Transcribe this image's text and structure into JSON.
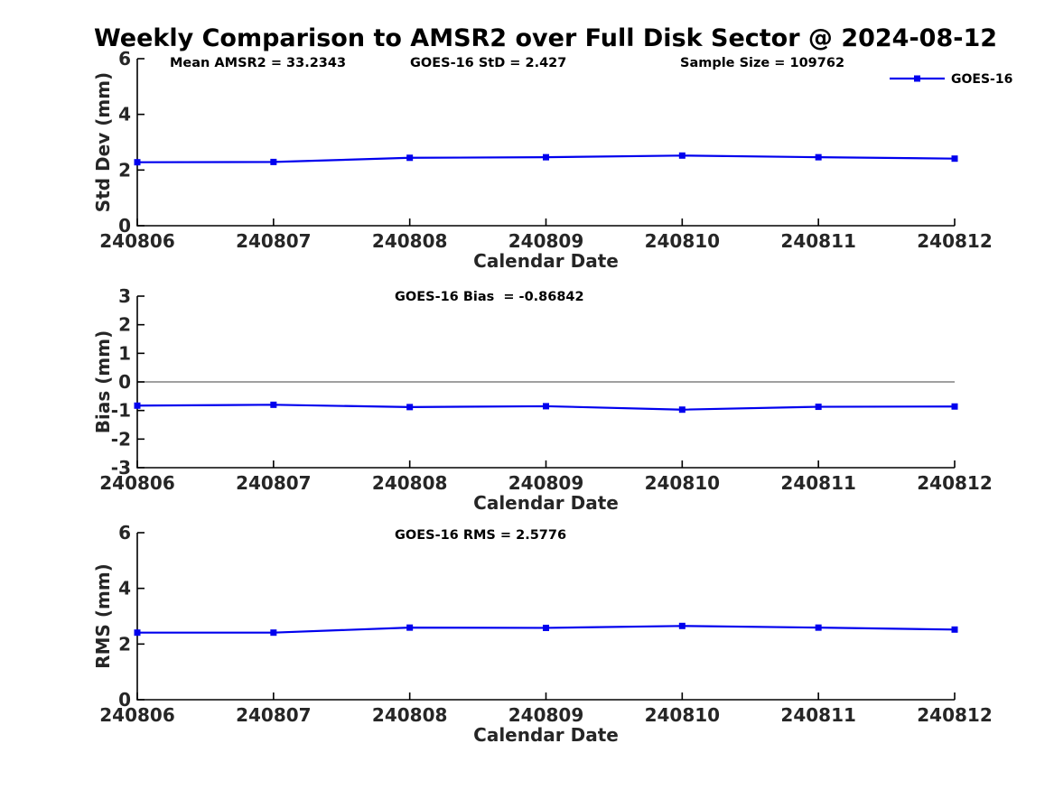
{
  "figure": {
    "title": "Weekly Comparison to AMSR2 over Full Disk Sector @ 2024-08-12",
    "background": "#ffffff"
  },
  "style": {
    "series_color": "#0000ee",
    "axis_color": "#000000",
    "tick_text_color": "#262626",
    "zero_line_color": "#808080",
    "marker_shape": "square"
  },
  "legend": {
    "visible": true,
    "position": "top-right",
    "entries": [
      {
        "label": "GOES-16",
        "color": "#0000ee",
        "marker": "square"
      }
    ]
  },
  "chart_data": [
    {
      "type": "line",
      "name": "std-dev",
      "xlabel": "Calendar Date",
      "ylabel": "Std Dev (mm)",
      "categories": [
        "240806",
        "240807",
        "240808",
        "240809",
        "240810",
        "240811",
        "240812"
      ],
      "series": [
        {
          "name": "GOES-16",
          "values": [
            2.28,
            2.29,
            2.44,
            2.46,
            2.52,
            2.46,
            2.41
          ]
        }
      ],
      "ylim": [
        0,
        6
      ],
      "yticks": [
        0,
        2,
        4,
        6
      ],
      "grid": false,
      "zero_line": false,
      "show_legend": true,
      "annotations": [
        "Mean AMSR2 = 33.2343",
        "GOES-16 StD = 2.427",
        "Sample Size = 109762"
      ]
    },
    {
      "type": "line",
      "name": "bias",
      "xlabel": "Calendar Date",
      "ylabel": "Bias (mm)",
      "categories": [
        "240806",
        "240807",
        "240808",
        "240809",
        "240810",
        "240811",
        "240812"
      ],
      "series": [
        {
          "name": "GOES-16",
          "values": [
            -0.83,
            -0.8,
            -0.88,
            -0.85,
            -0.97,
            -0.87,
            -0.86
          ]
        }
      ],
      "ylim": [
        -3,
        3
      ],
      "yticks": [
        -3,
        -2,
        -1,
        0,
        1,
        2,
        3
      ],
      "grid": false,
      "zero_line": true,
      "show_legend": false,
      "annotations": [
        "GOES-16 Bias  = -0.86842"
      ]
    },
    {
      "type": "line",
      "name": "rms",
      "xlabel": "Calendar Date",
      "ylabel": "RMS (mm)",
      "categories": [
        "240806",
        "240807",
        "240808",
        "240809",
        "240810",
        "240811",
        "240812"
      ],
      "series": [
        {
          "name": "GOES-16",
          "values": [
            2.41,
            2.41,
            2.59,
            2.58,
            2.65,
            2.59,
            2.52
          ]
        }
      ],
      "ylim": [
        0,
        6
      ],
      "yticks": [
        0,
        2,
        4,
        6
      ],
      "grid": false,
      "zero_line": false,
      "show_legend": false,
      "annotations": [
        "GOES-16 RMS = 2.5776"
      ]
    }
  ]
}
